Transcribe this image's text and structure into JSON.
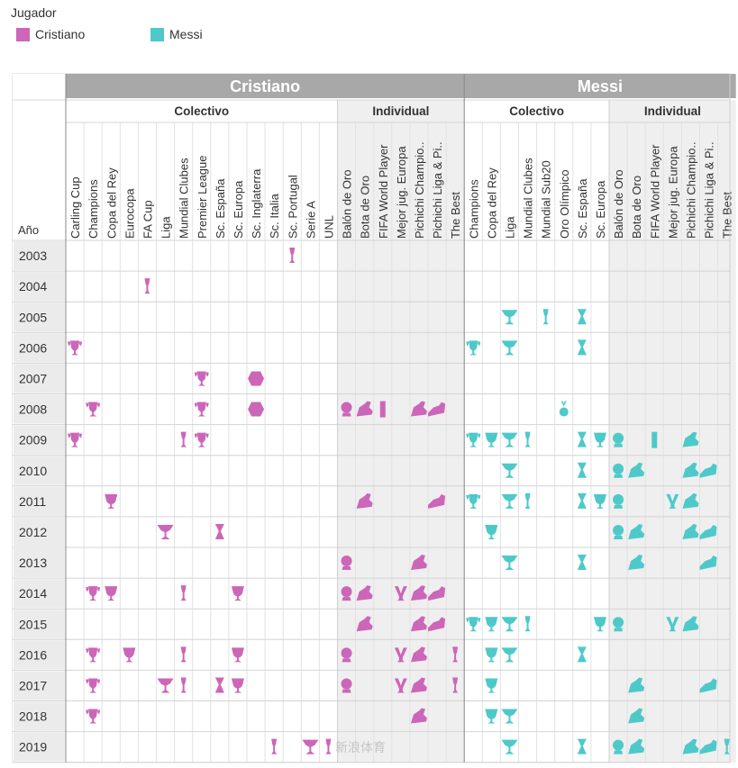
{
  "legend": {
    "title": "Jugador",
    "items": [
      {
        "label": "Cristiano",
        "color": "#cc66b8"
      },
      {
        "label": "Messi",
        "color": "#4ec9c9"
      }
    ]
  },
  "chart_data": {
    "type": "table",
    "row_header": "Año",
    "years": [
      "2003",
      "2004",
      "2005",
      "2006",
      "2007",
      "2008",
      "2009",
      "2010",
      "2011",
      "2012",
      "2013",
      "2014",
      "2015",
      "2016",
      "2017",
      "2018",
      "2019"
    ],
    "players": [
      {
        "name": "Cristiano",
        "color": "#cc66b8",
        "groups": [
          {
            "name": "Colectivo",
            "columns": [
              "Carling Cup",
              "Champions",
              "Copa del Rey",
              "Eurocopa",
              "FA Cup",
              "Liga",
              "Mundial Clubes",
              "Premier League",
              "Sc. España",
              "Sc. Europa",
              "Sc. Inglaterra",
              "Sc. Italia",
              "Sc. Portugal",
              "Serie A",
              "UNL"
            ]
          },
          {
            "name": "Individual",
            "columns": [
              "Balón de Oro",
              "Bota de Oro",
              "FIFA World Player",
              "Mejor jug. Europa",
              "Pichichi Champio..",
              "Pichichi Liga & Pi..",
              "The Best"
            ]
          }
        ],
        "trophies": {
          "2003": [
            "Sc. Portugal"
          ],
          "2004": [
            "FA Cup"
          ],
          "2006": [
            "Carling Cup"
          ],
          "2007": [
            "Premier League",
            "Sc. Inglaterra"
          ],
          "2008": [
            "Champions",
            "Premier League",
            "Sc. Inglaterra",
            "Balón de Oro",
            "Bota de Oro",
            "FIFA World Player",
            "Pichichi Champio..",
            "Pichichi Liga & Pi.."
          ],
          "2009": [
            "Carling Cup",
            "Mundial Clubes",
            "Premier League"
          ],
          "2011": [
            "Copa del Rey",
            "Bota de Oro",
            "Pichichi Liga & Pi.."
          ],
          "2012": [
            "Liga",
            "Sc. España"
          ],
          "2013": [
            "Balón de Oro",
            "Pichichi Champio.."
          ],
          "2014": [
            "Champions",
            "Copa del Rey",
            "Mundial Clubes",
            "Sc. Europa",
            "Balón de Oro",
            "Bota de Oro",
            "Mejor jug. Europa",
            "Pichichi Champio..",
            "Pichichi Liga & Pi.."
          ],
          "2015": [
            "Bota de Oro",
            "Pichichi Champio..",
            "Pichichi Liga & Pi.."
          ],
          "2016": [
            "Champions",
            "Eurocopa",
            "Mundial Clubes",
            "Sc. Europa",
            "Balón de Oro",
            "Mejor jug. Europa",
            "Pichichi Champio..",
            "The Best"
          ],
          "2017": [
            "Champions",
            "Liga",
            "Mundial Clubes",
            "Sc. España",
            "Sc. Europa",
            "Balón de Oro",
            "Mejor jug. Europa",
            "Pichichi Champio..",
            "The Best"
          ],
          "2018": [
            "Champions",
            "Pichichi Champio.."
          ],
          "2019": [
            "Sc. Italia",
            "Serie A",
            "UNL"
          ]
        }
      },
      {
        "name": "Messi",
        "color": "#4ec9c9",
        "groups": [
          {
            "name": "Colectivo",
            "columns": [
              "Champions",
              "Copa del Rey",
              "Liga",
              "Mundial Clubes",
              "Mundial Sub20",
              "Oro Olímpico",
              "Sc. España",
              "Sc. Europa"
            ]
          },
          {
            "name": "Individual",
            "columns": [
              "Balón de Oro",
              "Bota de Oro",
              "FIFA World Player",
              "Mejor jug. Europa",
              "Pichichi Champio..",
              "Pichichi Liga & Pi..",
              "The Best"
            ]
          }
        ],
        "trophies": {
          "2005": [
            "Liga",
            "Mundial Sub20",
            "Sc. España"
          ],
          "2006": [
            "Champions",
            "Liga",
            "Sc. España"
          ],
          "2008": [
            "Oro Olímpico"
          ],
          "2009": [
            "Champions",
            "Copa del Rey",
            "Liga",
            "Mundial Clubes",
            "Sc. España",
            "Sc. Europa",
            "Balón de Oro",
            "FIFA World Player",
            "Pichichi Champio.."
          ],
          "2010": [
            "Liga",
            "Sc. España",
            "Balón de Oro",
            "Bota de Oro",
            "Pichichi Champio..",
            "Pichichi Liga & Pi.."
          ],
          "2011": [
            "Champions",
            "Liga",
            "Mundial Clubes",
            "Sc. España",
            "Sc. Europa",
            "Balón de Oro",
            "Mejor jug. Europa",
            "Pichichi Champio.."
          ],
          "2012": [
            "Copa del Rey",
            "Balón de Oro",
            "Bota de Oro",
            "Pichichi Champio..",
            "Pichichi Liga & Pi.."
          ],
          "2013": [
            "Liga",
            "Sc. España",
            "Bota de Oro",
            "Pichichi Liga & Pi.."
          ],
          "2014": [],
          "2015": [
            "Champions",
            "Copa del Rey",
            "Liga",
            "Mundial Clubes",
            "Sc. Europa",
            "Balón de Oro",
            "Mejor jug. Europa",
            "Pichichi Champio.."
          ],
          "2016": [
            "Copa del Rey",
            "Liga",
            "Sc. España"
          ],
          "2017": [
            "Copa del Rey",
            "Bota de Oro",
            "Pichichi Liga & Pi.."
          ],
          "2018": [
            "Copa del Rey",
            "Liga",
            "Bota de Oro"
          ],
          "2019": [
            "Liga",
            "Sc. España",
            "Balón de Oro",
            "Bota de Oro",
            "Pichichi Champio..",
            "Pichichi Liga & Pi..",
            "The Best"
          ]
        }
      }
    ],
    "watermark": "新浪体育"
  }
}
